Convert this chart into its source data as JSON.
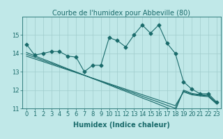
{
  "title": "Courbe de l'humidex pour Abbeville (80)",
  "xlabel": "Humidex (Indice chaleur)",
  "ylabel": "",
  "bg_color": "#c0e8e8",
  "grid_color": "#a0cccc",
  "line_color": "#1a6b6b",
  "x": [
    0,
    1,
    2,
    3,
    4,
    5,
    6,
    7,
    8,
    9,
    10,
    11,
    12,
    13,
    14,
    15,
    16,
    17,
    18,
    19,
    20,
    21,
    22,
    23
  ],
  "series1": [
    14.5,
    13.9,
    14.0,
    14.1,
    14.1,
    13.85,
    13.8,
    13.0,
    13.35,
    13.35,
    14.85,
    14.7,
    14.35,
    15.0,
    15.55,
    15.1,
    15.55,
    14.55,
    14.0,
    12.45,
    12.05,
    11.8,
    11.8,
    11.35
  ],
  "series2": [
    14.05,
    13.87,
    13.69,
    13.52,
    13.34,
    13.16,
    12.99,
    12.81,
    12.63,
    12.46,
    12.28,
    12.1,
    11.93,
    11.75,
    11.57,
    11.4,
    11.22,
    11.04,
    10.87,
    12.0,
    11.82,
    11.75,
    11.72,
    11.3
  ],
  "series3": [
    13.95,
    13.79,
    13.62,
    13.46,
    13.3,
    13.13,
    12.97,
    12.81,
    12.64,
    12.48,
    12.32,
    12.15,
    11.99,
    11.83,
    11.66,
    11.5,
    11.34,
    11.17,
    11.01,
    11.95,
    11.78,
    11.72,
    11.68,
    11.27
  ],
  "series4": [
    13.85,
    13.7,
    13.55,
    13.4,
    13.25,
    13.1,
    12.95,
    12.8,
    12.65,
    12.5,
    12.35,
    12.2,
    12.05,
    11.9,
    11.75,
    11.6,
    11.45,
    11.3,
    11.15,
    11.9,
    11.74,
    11.68,
    11.64,
    11.24
  ],
  "ylim": [
    11.0,
    16.0
  ],
  "yticks": [
    11,
    12,
    13,
    14,
    15
  ],
  "xticks": [
    0,
    1,
    2,
    3,
    4,
    5,
    6,
    7,
    8,
    9,
    10,
    11,
    12,
    13,
    14,
    15,
    16,
    17,
    18,
    19,
    20,
    21,
    22,
    23
  ],
  "marker": "D",
  "marker_size": 2.5,
  "line_width": 0.8,
  "title_fontsize": 7,
  "label_fontsize": 7,
  "tick_fontsize": 6
}
